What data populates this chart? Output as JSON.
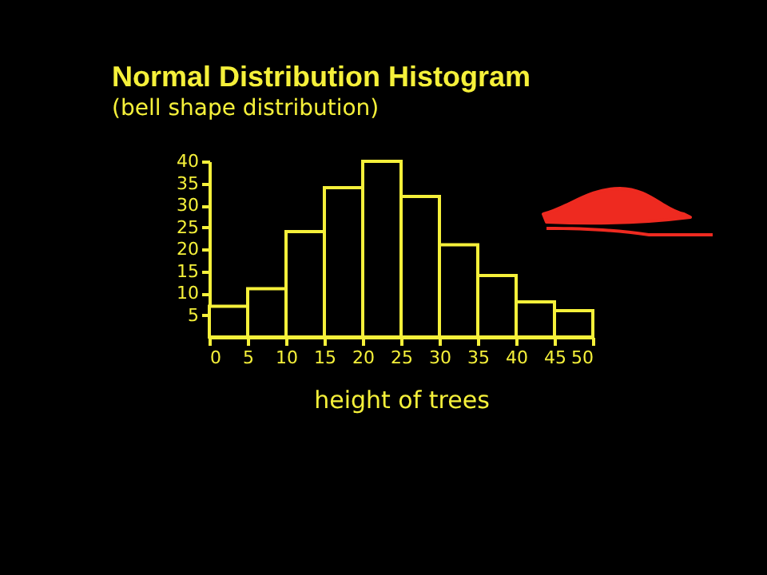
{
  "chart_data": {
    "type": "histogram",
    "title": "Normal Distribution Histogram",
    "subtitle": "(bell shape distribution)",
    "xlabel": "height of trees",
    "bins": [
      0,
      5,
      10,
      15,
      20,
      25,
      30,
      35,
      40,
      45,
      50
    ],
    "values": [
      7,
      11,
      24,
      34,
      40,
      32,
      21,
      14,
      8,
      6
    ],
    "color": "#f5f03a",
    "xlim": [
      0,
      50
    ],
    "xticks": [
      0,
      5,
      10,
      15,
      20,
      25,
      30,
      35,
      40,
      45,
      50
    ],
    "ylim": [
      0,
      40
    ],
    "yticks": [
      5,
      10,
      15,
      20,
      25,
      30,
      35,
      40
    ],
    "grid": false
  }
}
